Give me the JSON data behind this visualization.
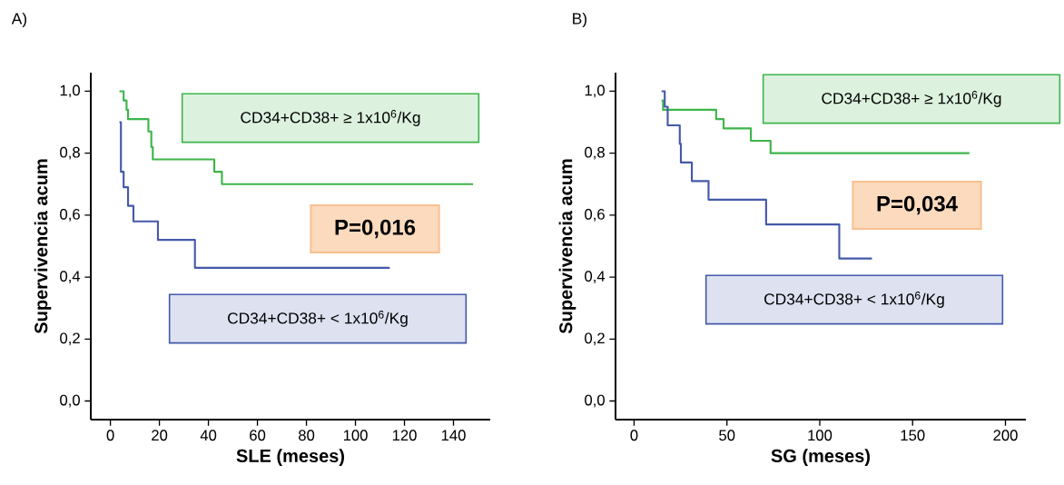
{
  "chart_data": [
    {
      "type": "step",
      "title": "A)",
      "xlabel": "SLE (meses)",
      "ylabel": "Supervivencia acum",
      "xlim": [
        -8,
        155
      ],
      "ylim": [
        -0.06,
        1.06
      ],
      "xticks": [
        0,
        20,
        40,
        60,
        80,
        100,
        120,
        140
      ],
      "yticks": [
        {
          "value": 0.0,
          "label": "0,0"
        },
        {
          "value": 0.2,
          "label": "0,2"
        },
        {
          "value": 0.4,
          "label": "0,4"
        },
        {
          "value": 0.6,
          "label": "0,6"
        },
        {
          "value": 0.8,
          "label": "0,8"
        },
        {
          "value": 1.0,
          "label": "1,0"
        }
      ],
      "annotations": [
        "P=0,016"
      ],
      "series": [
        {
          "name": "CD34+CD38+ ≥ 1x10$^{6}$/Kg",
          "color": "#3db54a",
          "x": [
            3.7,
            5.4,
            6.6,
            7.2,
            15.5,
            16.7,
            17.3,
            42.4,
            45.5,
            148
          ],
          "values": [
            1.0,
            0.97,
            0.94,
            0.91,
            0.87,
            0.82,
            0.78,
            0.74,
            0.7,
            0.7
          ]
        },
        {
          "name": "CD34+CD38+ < 1x10$^{6}$/Kg",
          "color": "#4459aa",
          "x": [
            3.7,
            4.3,
            5.4,
            7.2,
            9.4,
            19.4,
            34.5,
            114
          ],
          "values": [
            0.9,
            0.74,
            0.69,
            0.63,
            0.58,
            0.52,
            0.43,
            0.43
          ]
        }
      ]
    },
    {
      "type": "step",
      "title": "B)",
      "xlabel": "SG (meses)",
      "ylabel": "Supervivencia acum",
      "xlim": [
        -10,
        211
      ],
      "ylim": [
        -0.06,
        1.06
      ],
      "xticks": [
        0,
        50,
        100,
        150,
        200
      ],
      "yticks": [
        {
          "value": 0.0,
          "label": "0,0"
        },
        {
          "value": 0.2,
          "label": "0,2"
        },
        {
          "value": 0.4,
          "label": "0,4"
        },
        {
          "value": 0.6,
          "label": "0,6"
        },
        {
          "value": 0.8,
          "label": "0,8"
        },
        {
          "value": 1.0,
          "label": "1,0"
        }
      ],
      "annotations": [
        "P=0,034"
      ],
      "series": [
        {
          "name": "CD34+CD38+ ≥ 1x10$^{6}$/Kg",
          "color": "#3db54a",
          "x": [
            14.8,
            15.6,
            44.2,
            48.2,
            62.9,
            73.5,
            180.6
          ],
          "values": [
            0.97,
            0.94,
            0.91,
            0.88,
            0.84,
            0.8,
            0.8
          ]
        },
        {
          "name": "CD34+CD38+ < 1x10$^{6}$/Kg",
          "color": "#4459aa",
          "x": [
            14.8,
            16.5,
            18.1,
            24.6,
            25.2,
            31.1,
            40.1,
            71.1,
            110.5,
            128.1
          ],
          "values": [
            1.0,
            0.95,
            0.89,
            0.83,
            0.77,
            0.71,
            0.65,
            0.57,
            0.46,
            0.46
          ]
        }
      ]
    }
  ]
}
